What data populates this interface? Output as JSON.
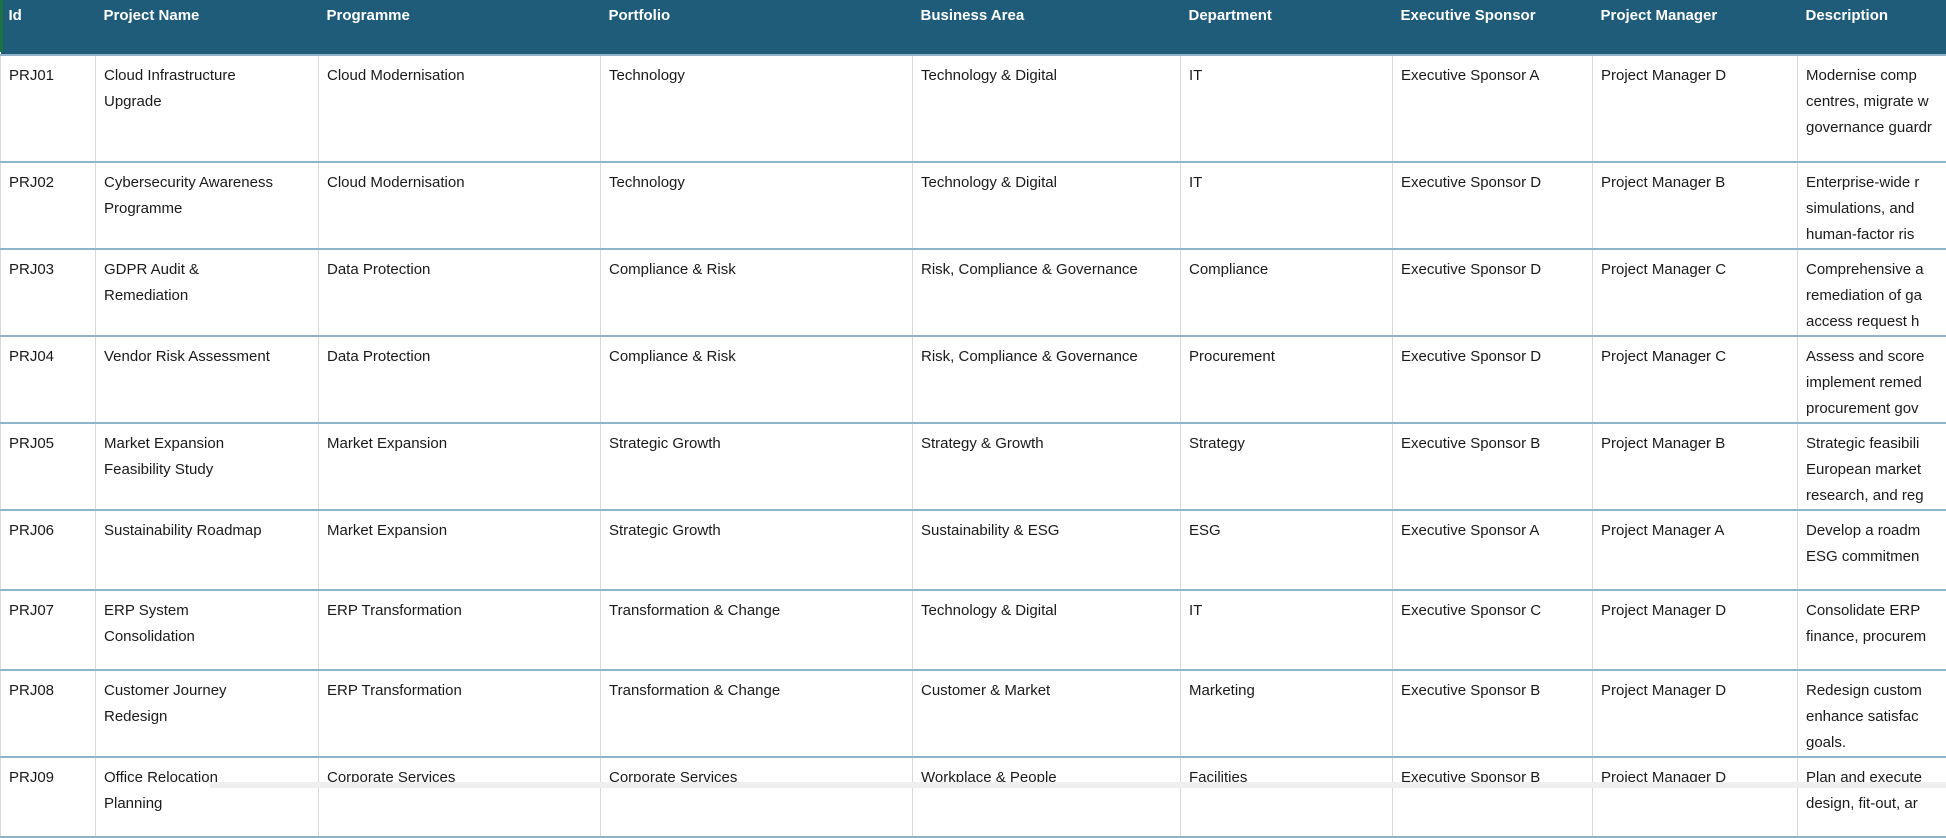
{
  "colors": {
    "header_bg": "#1f5c7a",
    "header_text": "#ffffff",
    "row_border": "#8fb3c9",
    "grid_border": "#d9d9d9",
    "cell_text": "#1a1a1a",
    "accent_left_strip": "#1e7145",
    "scrollbar_track": "#efefef"
  },
  "table": {
    "columns": [
      {
        "label": "Id"
      },
      {
        "label": "Project Name"
      },
      {
        "label": "Programme"
      },
      {
        "label": "Portfolio"
      },
      {
        "label": "Business Area"
      },
      {
        "label": "Department"
      },
      {
        "label": "Executive Sponsor"
      },
      {
        "label": "Project Manager"
      },
      {
        "label": "Description"
      }
    ],
    "rows": [
      {
        "id": "PRJ01",
        "project_name_lines": [
          "Cloud Infrastructure",
          "Upgrade"
        ],
        "programme": "Cloud Modernisation",
        "portfolio": "Technology",
        "business_area": "Technology & Digital",
        "department": "IT",
        "executive_sponsor": "Executive Sponsor A",
        "project_manager": "Project Manager D",
        "description_lines": [
          "Modernise comp",
          "centres, migrate w",
          "governance guardr"
        ]
      },
      {
        "id": "PRJ02",
        "project_name_lines": [
          "Cybersecurity Awareness",
          "Programme"
        ],
        "programme": "Cloud Modernisation",
        "portfolio": "Technology",
        "business_area": "Technology & Digital",
        "department": "IT",
        "executive_sponsor": "Executive Sponsor D",
        "project_manager": "Project Manager B",
        "description_lines": [
          "Enterprise-wide r",
          "simulations, and",
          "human-factor ris"
        ]
      },
      {
        "id": "PRJ03",
        "project_name_lines": [
          "GDPR Audit &",
          "Remediation"
        ],
        "programme": "Data Protection",
        "portfolio": "Compliance & Risk",
        "business_area": "Risk, Compliance & Governance",
        "department": "Compliance",
        "executive_sponsor": "Executive Sponsor D",
        "project_manager": "Project Manager C",
        "description_lines": [
          "Comprehensive a",
          "remediation of ga",
          "access request h"
        ]
      },
      {
        "id": "PRJ04",
        "project_name_lines": [
          "Vendor Risk Assessment"
        ],
        "programme": "Data Protection",
        "portfolio": "Compliance & Risk",
        "business_area": "Risk, Compliance & Governance",
        "department": "Procurement",
        "executive_sponsor": "Executive Sponsor D",
        "project_manager": "Project Manager C",
        "description_lines": [
          "Assess and score",
          "implement remed",
          "procurement gov"
        ]
      },
      {
        "id": "PRJ05",
        "project_name_lines": [
          "Market Expansion",
          "Feasibility Study"
        ],
        "programme": "Market Expansion",
        "portfolio": "Strategic Growth",
        "business_area": "Strategy & Growth",
        "department": "Strategy",
        "executive_sponsor": "Executive Sponsor B",
        "project_manager": "Project Manager B",
        "description_lines": [
          "Strategic feasibili",
          "European market",
          "research, and reg"
        ]
      },
      {
        "id": "PRJ06",
        "project_name_lines": [
          "Sustainability Roadmap"
        ],
        "programme": "Market Expansion",
        "portfolio": "Strategic Growth",
        "business_area": "Sustainability & ESG",
        "department": "ESG",
        "executive_sponsor": "Executive Sponsor A",
        "project_manager": "Project Manager A",
        "description_lines": [
          "Develop a roadm",
          "ESG commitmen"
        ]
      },
      {
        "id": "PRJ07",
        "project_name_lines": [
          "ERP System",
          "Consolidation"
        ],
        "programme": "ERP Transformation",
        "portfolio": "Transformation & Change",
        "business_area": "Technology & Digital",
        "department": "IT",
        "executive_sponsor": "Executive Sponsor C",
        "project_manager": "Project Manager D",
        "description_lines": [
          "Consolidate ERP",
          "finance, procurem"
        ]
      },
      {
        "id": "PRJ08",
        "project_name_lines": [
          "Customer Journey",
          "Redesign"
        ],
        "programme": "ERP Transformation",
        "portfolio": "Transformation & Change",
        "business_area": "Customer & Market",
        "department": "Marketing",
        "executive_sponsor": "Executive Sponsor B",
        "project_manager": "Project Manager D",
        "description_lines": [
          "Redesign custom",
          "enhance satisfac",
          "goals."
        ]
      },
      {
        "id": "PRJ09",
        "project_name_lines": [
          "Office Relocation",
          "Planning"
        ],
        "programme": "Corporate Services",
        "portfolio": "Corporate Services",
        "business_area": "Workplace & People",
        "department": "Facilities",
        "executive_sponsor": "Executive Sponsor B",
        "project_manager": "Project Manager D",
        "description_lines": [
          "Plan and execute",
          "design, fit-out, ar"
        ]
      }
    ]
  }
}
